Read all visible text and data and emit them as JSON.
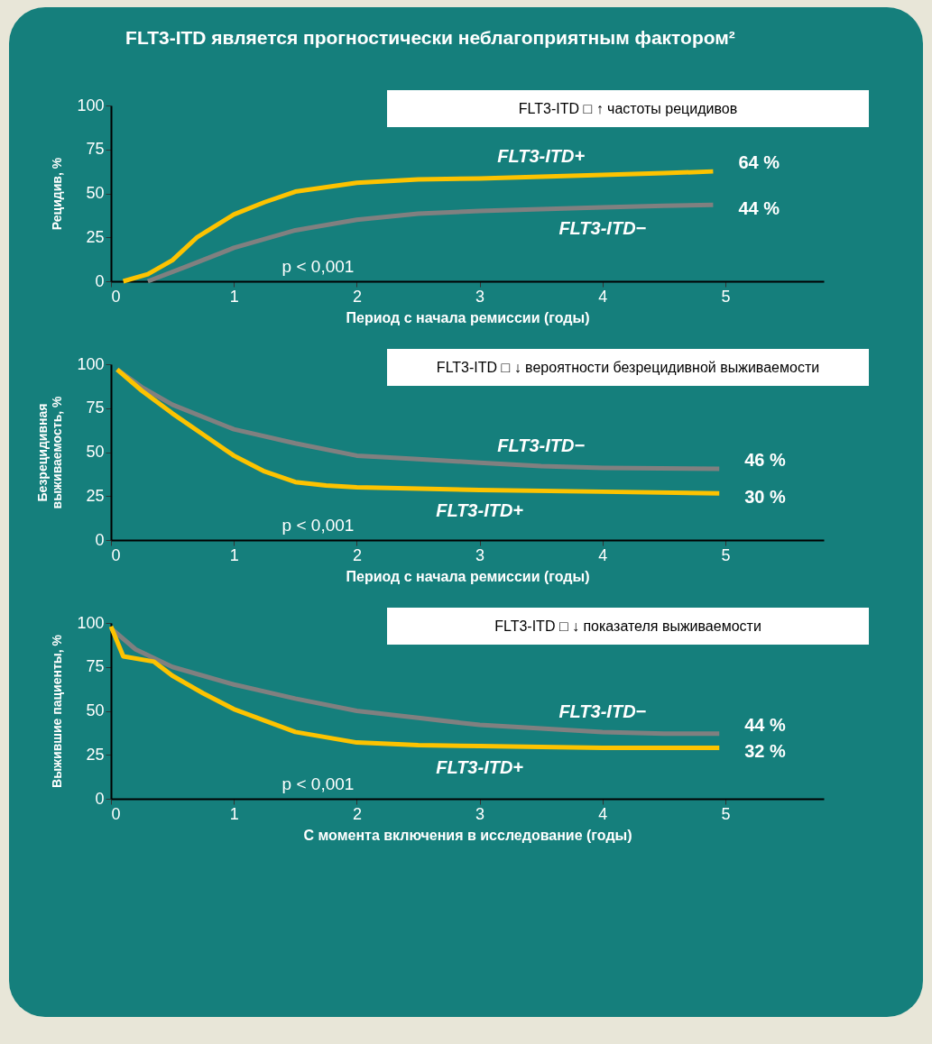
{
  "chart_data": [
    {
      "type": "line",
      "title": "FLT3-ITD является прогностически неблагоприятным фактором²",
      "subtitle": "FLT3-ITD □ ↑ частоты рецидивов",
      "xlabel": "Период с начала ремиссии (годы)",
      "ylabel": "Рецидив, %",
      "xlim": [
        0,
        5.8
      ],
      "xticks": [
        0,
        1,
        2,
        3,
        4,
        5
      ],
      "ylim": [
        0,
        100
      ],
      "yticks": [
        0,
        25,
        50,
        75,
        100
      ],
      "series": [
        {
          "name": "FLT3-ITD+",
          "color": "#fdc300",
          "x": [
            0.1,
            0.3,
            0.5,
            0.7,
            1.0,
            1.25,
            1.5,
            2.0,
            2.5,
            3.0,
            3.5,
            4.0,
            4.5,
            4.9
          ],
          "values": [
            0,
            4,
            12,
            25,
            38,
            45,
            51,
            56,
            58,
            58.5,
            59.5,
            60.5,
            61.5,
            62.5
          ]
        },
        {
          "name": "FLT3-ITD−",
          "color": "#808080",
          "x": [
            0.3,
            0.6,
            1.0,
            1.5,
            2.0,
            2.5,
            3.0,
            3.5,
            4.0,
            4.5,
            4.9
          ],
          "values": [
            0,
            8,
            19,
            29,
            35,
            38.5,
            40,
            41,
            42,
            43,
            43.5
          ]
        }
      ],
      "annotations": [
        "p < 0,001",
        "64 %",
        "44 %"
      ]
    },
    {
      "type": "line",
      "subtitle": "FLT3-ITD □ ↓ вероятности безрецидивной выживаемости",
      "xlabel": "Период с начала ремиссии (годы)",
      "ylabel": "Безрецидивная выживаемость, %",
      "xlim": [
        0,
        5.8
      ],
      "xticks": [
        0,
        1,
        2,
        3,
        4,
        5
      ],
      "ylim": [
        0,
        100
      ],
      "yticks": [
        0,
        25,
        50,
        75,
        100
      ],
      "series": [
        {
          "name": "FLT3-ITD−",
          "color": "#808080",
          "x": [
            0.05,
            0.25,
            0.5,
            1.0,
            1.5,
            2.0,
            2.5,
            3.0,
            3.5,
            4.0,
            4.95
          ],
          "values": [
            97,
            87,
            77,
            63,
            55,
            48,
            46,
            44,
            42,
            41,
            40.5
          ]
        },
        {
          "name": "FLT3-ITD+",
          "color": "#fdc300",
          "x": [
            0.05,
            0.25,
            0.5,
            0.75,
            1.0,
            1.25,
            1.5,
            1.75,
            2.0,
            3.0,
            4.0,
            4.95
          ],
          "values": [
            97,
            85,
            72,
            60,
            48,
            39,
            33,
            31,
            30,
            28.5,
            27.5,
            26.5
          ]
        }
      ],
      "annotations": [
        "p < 0,001",
        "46 %",
        "30 %"
      ]
    },
    {
      "type": "line",
      "subtitle": "FLT3-ITD □ ↓ показателя выживаемости",
      "xlabel": "С момента включения в исследование (годы)",
      "ylabel": "Выжившие пациенты, %",
      "xlim": [
        0,
        5.8
      ],
      "xticks": [
        0,
        1,
        2,
        3,
        4,
        5
      ],
      "ylim": [
        0,
        100
      ],
      "yticks": [
        0,
        25,
        50,
        75,
        100
      ],
      "series": [
        {
          "name": "FLT3-ITD−",
          "color": "#808080",
          "x": [
            0,
            0.2,
            0.5,
            1.0,
            1.5,
            2.0,
            2.5,
            3.0,
            3.5,
            4.0,
            4.5,
            4.95
          ],
          "values": [
            97,
            85,
            75,
            65,
            57,
            50,
            46,
            42,
            40,
            38,
            37,
            37
          ]
        },
        {
          "name": "FLT3-ITD+",
          "color": "#fdc300",
          "x": [
            0,
            0.1,
            0.35,
            0.5,
            0.75,
            1.0,
            1.5,
            2.0,
            2.5,
            3.0,
            4.0,
            4.95
          ],
          "values": [
            98,
            81,
            78,
            70,
            60,
            51,
            38,
            32,
            30.5,
            30,
            29,
            29
          ]
        }
      ],
      "annotations": [
        "p < 0,001",
        "44 %",
        "32 %"
      ]
    }
  ]
}
